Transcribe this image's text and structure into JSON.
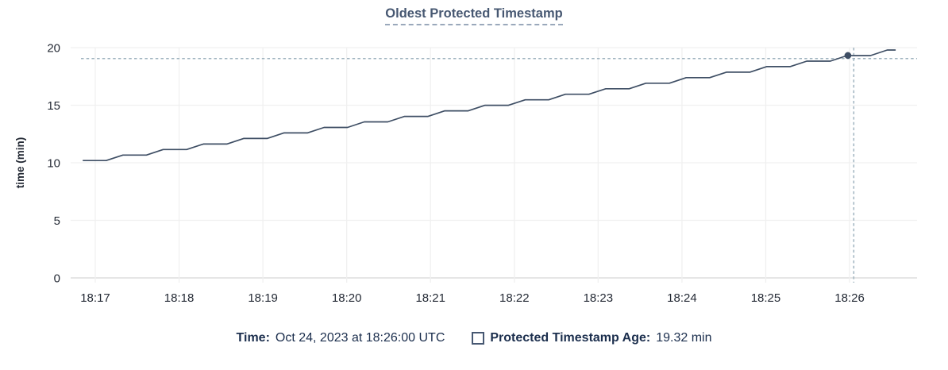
{
  "header": {
    "title": "Oldest Protected Timestamp"
  },
  "chart_data": {
    "type": "line",
    "title": "Oldest Protected Timestamp",
    "xlabel": "",
    "ylabel": "time (min)",
    "ylim": [
      0,
      20
    ],
    "yticks": [
      0,
      5,
      10,
      15,
      20
    ],
    "x_tick_minutes": [
      0,
      1,
      2,
      3,
      4,
      5,
      6,
      7,
      8,
      9
    ],
    "xtick_labels": [
      "18:17",
      "18:18",
      "18:19",
      "18:20",
      "18:21",
      "18:22",
      "18:23",
      "18:24",
      "18:25",
      "18:26"
    ],
    "x_range_minutes": [
      -0.29,
      9.8
    ],
    "grid": true,
    "legend_position": "bottom",
    "series": [
      {
        "name": "Protected Timestamp Age",
        "unit": "min",
        "points": [
          [
            -0.15,
            10.19
          ],
          [
            0.13,
            10.19
          ],
          [
            0.33,
            10.67
          ],
          [
            0.61,
            10.67
          ],
          [
            0.81,
            11.15
          ],
          [
            1.09,
            11.15
          ],
          [
            1.29,
            11.63
          ],
          [
            1.57,
            11.63
          ],
          [
            1.77,
            12.11
          ],
          [
            2.05,
            12.11
          ],
          [
            2.25,
            12.59
          ],
          [
            2.53,
            12.59
          ],
          [
            2.73,
            13.07
          ],
          [
            3.01,
            13.07
          ],
          [
            3.21,
            13.55
          ],
          [
            3.49,
            13.55
          ],
          [
            3.69,
            14.03
          ],
          [
            3.97,
            14.03
          ],
          [
            4.17,
            14.51
          ],
          [
            4.45,
            14.51
          ],
          [
            4.65,
            14.99
          ],
          [
            4.93,
            14.99
          ],
          [
            5.13,
            15.47
          ],
          [
            5.41,
            15.47
          ],
          [
            5.61,
            15.95
          ],
          [
            5.89,
            15.95
          ],
          [
            6.09,
            16.43
          ],
          [
            6.37,
            16.43
          ],
          [
            6.57,
            16.91
          ],
          [
            6.85,
            16.91
          ],
          [
            7.05,
            17.39
          ],
          [
            7.33,
            17.39
          ],
          [
            7.53,
            17.87
          ],
          [
            7.81,
            17.87
          ],
          [
            8.01,
            18.35
          ],
          [
            8.29,
            18.35
          ],
          [
            8.49,
            18.83
          ],
          [
            8.77,
            18.83
          ],
          [
            8.97,
            19.31
          ],
          [
            9.25,
            19.31
          ],
          [
            9.45,
            19.79
          ],
          [
            9.55,
            19.79
          ]
        ]
      }
    ],
    "hover": {
      "time": "Oct 24, 2023 at 18:26:00 UTC",
      "point_t": 8.98,
      "point_v": 19.32,
      "crosshair_x_t": 9.05,
      "crosshair_y_v": 19.05
    }
  },
  "legend": {
    "time_label": "Time:",
    "time_value": "Oct 24, 2023 at 18:26:00 UTC",
    "series_label": "Protected Timestamp Age:",
    "series_value": "19.32 min"
  },
  "colors": {
    "line": "#3e4e64",
    "dot": "#3e4e64",
    "crosshair": "#9fb3bf",
    "grid": "#f0f0f0",
    "axis": "#dedede",
    "title": "#475872",
    "title_underline": "#9aa8bb",
    "legend_text": "#1b2e4d",
    "tick_text": "#242a35",
    "swatch_border": "#475872"
  }
}
